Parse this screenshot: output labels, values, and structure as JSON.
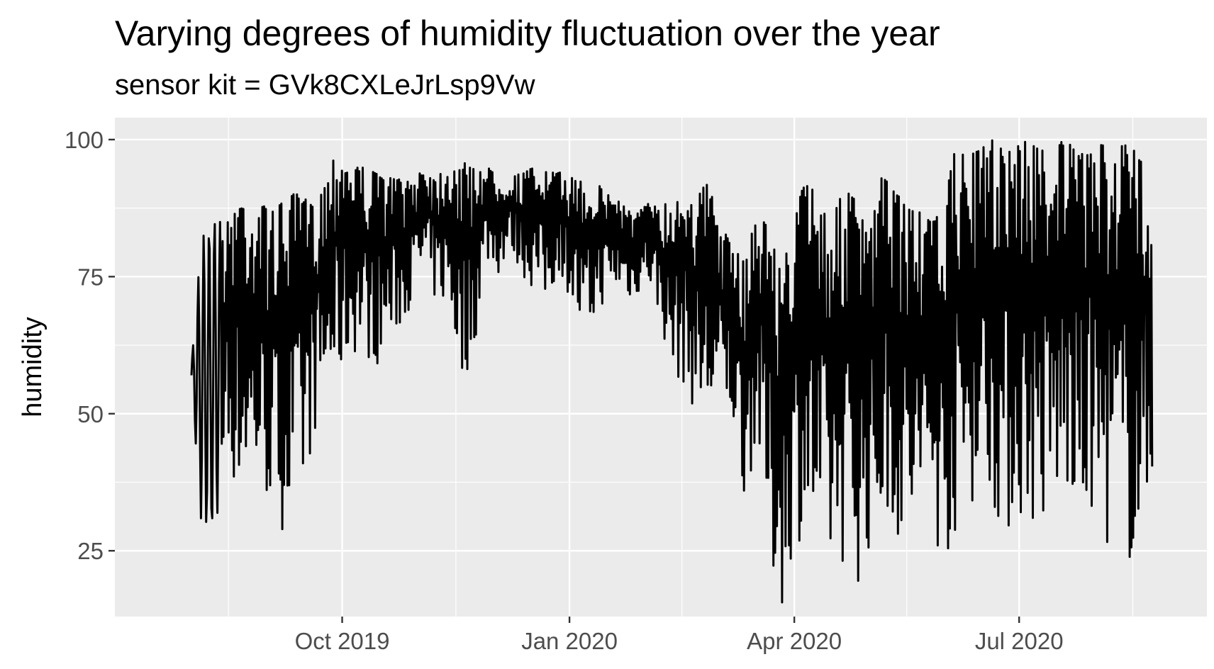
{
  "chart_data": {
    "type": "line",
    "title": "Varying degrees of humidity fluctuation over the year",
    "subtitle": "sensor kit = GVk8CXLeJrLsp9Vw",
    "xlabel": "",
    "ylabel": "humidity",
    "x_ticks": [
      {
        "label": "Oct 2019",
        "date": "2019-10-01"
      },
      {
        "label": "Jan 2020",
        "date": "2020-01-01"
      },
      {
        "label": "Apr 2020",
        "date": "2020-04-01"
      },
      {
        "label": "Jul 2020",
        "date": "2020-07-01"
      }
    ],
    "y_ticks": [
      25,
      50,
      75,
      100
    ],
    "xlim": [
      "2019-07-01",
      "2020-09-15"
    ],
    "ylim": [
      13,
      104
    ],
    "grid": true,
    "legend": "none",
    "colors": {
      "panel": "#ebebeb",
      "grid": "#ffffff",
      "line": "#000000"
    },
    "series": [
      {
        "x": [
          "2019-08-01",
          "2019-08-05",
          "2019-08-10",
          "2019-08-15",
          "2019-08-20",
          "2019-08-25",
          "2019-08-30",
          "2019-09-04",
          "2019-09-09",
          "2019-09-14",
          "2019-09-19",
          "2019-09-24",
          "2019-09-29",
          "2019-10-04",
          "2019-10-09",
          "2019-10-14",
          "2019-10-19",
          "2019-10-24",
          "2019-10-29",
          "2019-11-03",
          "2019-11-08",
          "2019-11-13",
          "2019-11-18",
          "2019-11-23",
          "2019-11-28",
          "2019-12-03",
          "2019-12-08",
          "2019-12-13",
          "2019-12-18",
          "2019-12-23",
          "2019-12-28",
          "2020-01-02",
          "2020-01-07",
          "2020-01-12",
          "2020-01-17",
          "2020-01-22",
          "2020-01-27",
          "2020-02-01",
          "2020-02-06",
          "2020-02-11",
          "2020-02-16",
          "2020-02-21",
          "2020-02-26",
          "2020-03-02",
          "2020-03-07",
          "2020-03-12",
          "2020-03-17",
          "2020-03-22",
          "2020-03-27",
          "2020-04-01",
          "2020-04-06",
          "2020-04-11",
          "2020-04-16",
          "2020-04-21",
          "2020-04-26",
          "2020-05-01",
          "2020-05-06",
          "2020-05-11",
          "2020-05-16",
          "2020-05-21",
          "2020-05-26",
          "2020-05-31",
          "2020-06-05",
          "2020-06-10",
          "2020-06-15",
          "2020-06-20",
          "2020-06-25",
          "2020-06-30",
          "2020-07-05",
          "2020-07-10",
          "2020-07-15",
          "2020-07-20",
          "2020-07-25",
          "2020-07-30",
          "2020-08-04",
          "2020-08-09",
          "2020-08-14",
          "2020-08-19",
          "2020-08-24"
        ],
        "min": [
          55,
          30,
          28,
          40,
          35,
          38,
          35,
          30,
          28,
          30,
          45,
          52,
          55,
          60,
          62,
          58,
          62,
          65,
          70,
          75,
          70,
          70,
          55,
          60,
          78,
          75,
          80,
          75,
          72,
          70,
          76,
          70,
          60,
          68,
          72,
          72,
          70,
          75,
          68,
          58,
          55,
          50,
          47,
          50,
          48,
          34,
          45,
          20,
          15,
          26,
          28,
          22,
          20,
          23,
          18,
          24,
          28,
          30,
          22,
          28,
          30,
          22,
          27,
          32,
          36,
          34,
          26,
          30,
          30,
          28,
          30,
          35,
          25,
          32,
          25,
          28,
          22,
          24,
          35
        ],
        "max": [
          59,
          82,
          86,
          84,
          91,
          87,
          88,
          87,
          90,
          90,
          88,
          92,
          99,
          96,
          95,
          94,
          93,
          93,
          92,
          96,
          93,
          96,
          96,
          95,
          95,
          94,
          93,
          94,
          95,
          94,
          94,
          93,
          93,
          92,
          90,
          89,
          86,
          88,
          90,
          87,
          92,
          90,
          92,
          85,
          80,
          78,
          87,
          84,
          75,
          87,
          93,
          90,
          85,
          91,
          89,
          82,
          93,
          92,
          88,
          87,
          85,
          87,
          98,
          97,
          98,
          100,
          100,
          99,
          100,
          98,
          100,
          100,
          97,
          99,
          99,
          98,
          100,
          96,
          97
        ]
      }
    ]
  }
}
